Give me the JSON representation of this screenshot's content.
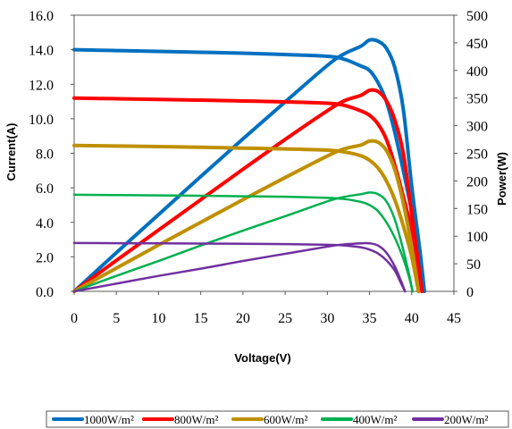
{
  "chart_data": {
    "type": "line",
    "title": "",
    "xlabel": "Voltage(V)",
    "ylabel": "Current(A)",
    "y2label": "Power(W)",
    "xlim": [
      0,
      45
    ],
    "ylim": [
      0,
      16
    ],
    "y2lim": [
      0,
      500
    ],
    "x_ticks": [
      "0",
      "5",
      "10",
      "15",
      "20",
      "25",
      "30",
      "35",
      "40",
      "45"
    ],
    "y_ticks": [
      "0.0",
      "2.0",
      "4.0",
      "6.0",
      "8.0",
      "10.0",
      "12.0",
      "14.0",
      "16.0"
    ],
    "y2_ticks": [
      "0",
      "50",
      "100",
      "150",
      "200",
      "250",
      "300",
      "350",
      "400",
      "450",
      "500"
    ],
    "grid": false,
    "legend_position": "bottom",
    "series": [
      {
        "name": "1000W/m²",
        "color": "#0070C0",
        "iv": [
          [
            0,
            14.0
          ],
          [
            5,
            13.95
          ],
          [
            10,
            13.9
          ],
          [
            15,
            13.85
          ],
          [
            20,
            13.8
          ],
          [
            25,
            13.72
          ],
          [
            30,
            13.62
          ],
          [
            32,
            13.45
          ],
          [
            34,
            13.05
          ],
          [
            35,
            12.8
          ],
          [
            36,
            12.1
          ],
          [
            37,
            11.0
          ],
          [
            38,
            9.2
          ],
          [
            39,
            7.0
          ],
          [
            40,
            4.6
          ],
          [
            41,
            1.8
          ],
          [
            41.5,
            0
          ]
        ],
        "pv": [
          [
            0,
            0
          ],
          [
            5,
            70
          ],
          [
            10,
            139
          ],
          [
            15,
            208
          ],
          [
            20,
            276
          ],
          [
            25,
            343
          ],
          [
            30,
            409
          ],
          [
            32,
            430
          ],
          [
            34,
            444
          ],
          [
            35,
            455
          ],
          [
            36,
            453
          ],
          [
            37,
            440
          ],
          [
            38,
            405
          ],
          [
            39,
            330
          ],
          [
            40,
            190
          ],
          [
            41,
            70
          ],
          [
            41.5,
            0
          ]
        ]
      },
      {
        "name": "800W/m²",
        "color": "#FF0000",
        "iv": [
          [
            0,
            11.2
          ],
          [
            5,
            11.16
          ],
          [
            10,
            11.12
          ],
          [
            15,
            11.08
          ],
          [
            20,
            11.03
          ],
          [
            25,
            10.98
          ],
          [
            30,
            10.9
          ],
          [
            32,
            10.78
          ],
          [
            34,
            10.45
          ],
          [
            35,
            10.2
          ],
          [
            36,
            9.7
          ],
          [
            37,
            8.8
          ],
          [
            38,
            7.3
          ],
          [
            39,
            5.5
          ],
          [
            40,
            3.5
          ],
          [
            40.7,
            1.5
          ],
          [
            41.2,
            0
          ]
        ],
        "pv": [
          [
            0,
            0
          ],
          [
            5,
            56
          ],
          [
            10,
            111
          ],
          [
            15,
            166
          ],
          [
            20,
            221
          ],
          [
            25,
            275
          ],
          [
            30,
            327
          ],
          [
            32,
            345
          ],
          [
            34,
            355
          ],
          [
            35,
            364
          ],
          [
            36,
            362
          ],
          [
            37,
            345
          ],
          [
            38,
            310
          ],
          [
            39,
            250
          ],
          [
            40,
            140
          ],
          [
            40.7,
            60
          ],
          [
            41.2,
            0
          ]
        ]
      },
      {
        "name": "600W/m²",
        "color": "#BF9000",
        "iv": [
          [
            0,
            8.45
          ],
          [
            5,
            8.42
          ],
          [
            10,
            8.39
          ],
          [
            15,
            8.35
          ],
          [
            20,
            8.3
          ],
          [
            25,
            8.25
          ],
          [
            30,
            8.18
          ],
          [
            32,
            8.08
          ],
          [
            34,
            7.85
          ],
          [
            35,
            7.6
          ],
          [
            36,
            7.15
          ],
          [
            37,
            6.4
          ],
          [
            38,
            5.3
          ],
          [
            39,
            3.8
          ],
          [
            40,
            2.0
          ],
          [
            40.8,
            0
          ]
        ],
        "pv": [
          [
            0,
            0
          ],
          [
            5,
            42
          ],
          [
            10,
            84
          ],
          [
            15,
            125
          ],
          [
            20,
            166
          ],
          [
            25,
            206
          ],
          [
            30,
            245
          ],
          [
            32,
            258
          ],
          [
            34,
            265
          ],
          [
            35,
            272
          ],
          [
            36,
            270
          ],
          [
            37,
            255
          ],
          [
            38,
            220
          ],
          [
            39,
            160
          ],
          [
            40,
            80
          ],
          [
            40.8,
            0
          ]
        ]
      },
      {
        "name": "400W/m²",
        "color": "#00B050",
        "iv": [
          [
            0,
            5.6
          ],
          [
            5,
            5.58
          ],
          [
            10,
            5.56
          ],
          [
            15,
            5.54
          ],
          [
            20,
            5.51
          ],
          [
            25,
            5.48
          ],
          [
            30,
            5.42
          ],
          [
            32,
            5.35
          ],
          [
            34,
            5.18
          ],
          [
            35,
            5.0
          ],
          [
            36,
            4.65
          ],
          [
            37,
            4.0
          ],
          [
            38,
            3.1
          ],
          [
            39,
            1.9
          ],
          [
            39.7,
            0.8
          ],
          [
            40.1,
            0
          ]
        ],
        "pv": [
          [
            0,
            0
          ],
          [
            5,
            28
          ],
          [
            10,
            55
          ],
          [
            15,
            83
          ],
          [
            20,
            110
          ],
          [
            25,
            136
          ],
          [
            30,
            163
          ],
          [
            32,
            171
          ],
          [
            34,
            176
          ],
          [
            35,
            179
          ],
          [
            36,
            176
          ],
          [
            37,
            163
          ],
          [
            38,
            130
          ],
          [
            39,
            75
          ],
          [
            39.7,
            30
          ],
          [
            40.1,
            0
          ]
        ]
      },
      {
        "name": "200W/m²",
        "color": "#7030A0",
        "iv": [
          [
            0,
            2.8
          ],
          [
            5,
            2.79
          ],
          [
            10,
            2.78
          ],
          [
            15,
            2.77
          ],
          [
            20,
            2.76
          ],
          [
            25,
            2.74
          ],
          [
            30,
            2.7
          ],
          [
            32,
            2.66
          ],
          [
            34,
            2.55
          ],
          [
            35,
            2.42
          ],
          [
            36,
            2.2
          ],
          [
            37,
            1.8
          ],
          [
            38,
            1.2
          ],
          [
            38.7,
            0.5
          ],
          [
            39.2,
            0
          ]
        ],
        "pv": [
          [
            0,
            0
          ],
          [
            5,
            14
          ],
          [
            10,
            28
          ],
          [
            15,
            41
          ],
          [
            20,
            55
          ],
          [
            25,
            68
          ],
          [
            30,
            81
          ],
          [
            32,
            85
          ],
          [
            34,
            87
          ],
          [
            35,
            87
          ],
          [
            36,
            83
          ],
          [
            37,
            70
          ],
          [
            38,
            45
          ],
          [
            38.7,
            20
          ],
          [
            39.2,
            0
          ]
        ]
      }
    ]
  }
}
